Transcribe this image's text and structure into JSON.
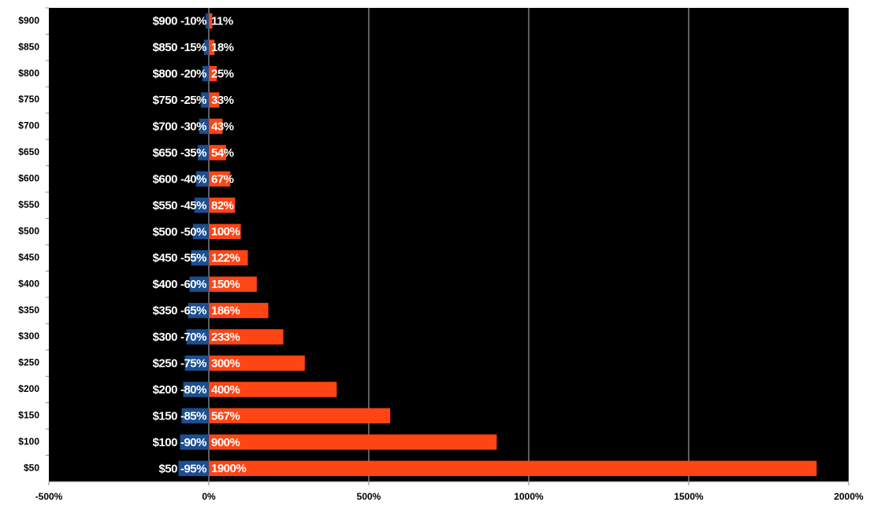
{
  "chart_data": {
    "type": "diverging-bar",
    "categories": [
      "$900",
      "$850",
      "$800",
      "$750",
      "$700",
      "$650",
      "$600",
      "$550",
      "$500",
      "$450",
      "$400",
      "$350",
      "$300",
      "$250",
      "$200",
      "$150",
      "$100",
      "$50"
    ],
    "series": [
      {
        "color": "#1c4f8f",
        "values": [
          -10,
          -15,
          -20,
          -25,
          -30,
          -35,
          -40,
          -45,
          -50,
          -55,
          -60,
          -65,
          -70,
          -75,
          -80,
          -85,
          -90,
          -95
        ],
        "value_labels": [
          "-10%",
          "-15%",
          "-20%",
          "-25%",
          "-30%",
          "-35%",
          "-40%",
          "-45%",
          "-50%",
          "-55%",
          "-60%",
          "-65%",
          "-70%",
          "-75%",
          "-80%",
          "-85%",
          "-90%",
          "-95%"
        ]
      },
      {
        "color": "#ff4514",
        "values": [
          11,
          18,
          25,
          33,
          43,
          54,
          67,
          82,
          100,
          122,
          150,
          186,
          233,
          300,
          400,
          567,
          900,
          1900
        ],
        "value_labels": [
          "11%",
          "18%",
          "25%",
          "33%",
          "43%",
          "54%",
          "67%",
          "82%",
          "100%",
          "122%",
          "150%",
          "186%",
          "233%",
          "300%",
          "400%",
          "567%",
          "900%",
          "1900%"
        ]
      }
    ],
    "xlim": [
      -500,
      2000
    ],
    "xticks": [
      {
        "value": -500,
        "label": "-500%"
      },
      {
        "value": 0,
        "label": "0%"
      },
      {
        "value": 500,
        "label": "500%"
      },
      {
        "value": 1000,
        "label": "1000%"
      },
      {
        "value": 1500,
        "label": "1500%"
      },
      {
        "value": 2000,
        "label": "2000%"
      }
    ],
    "grid": true
  }
}
